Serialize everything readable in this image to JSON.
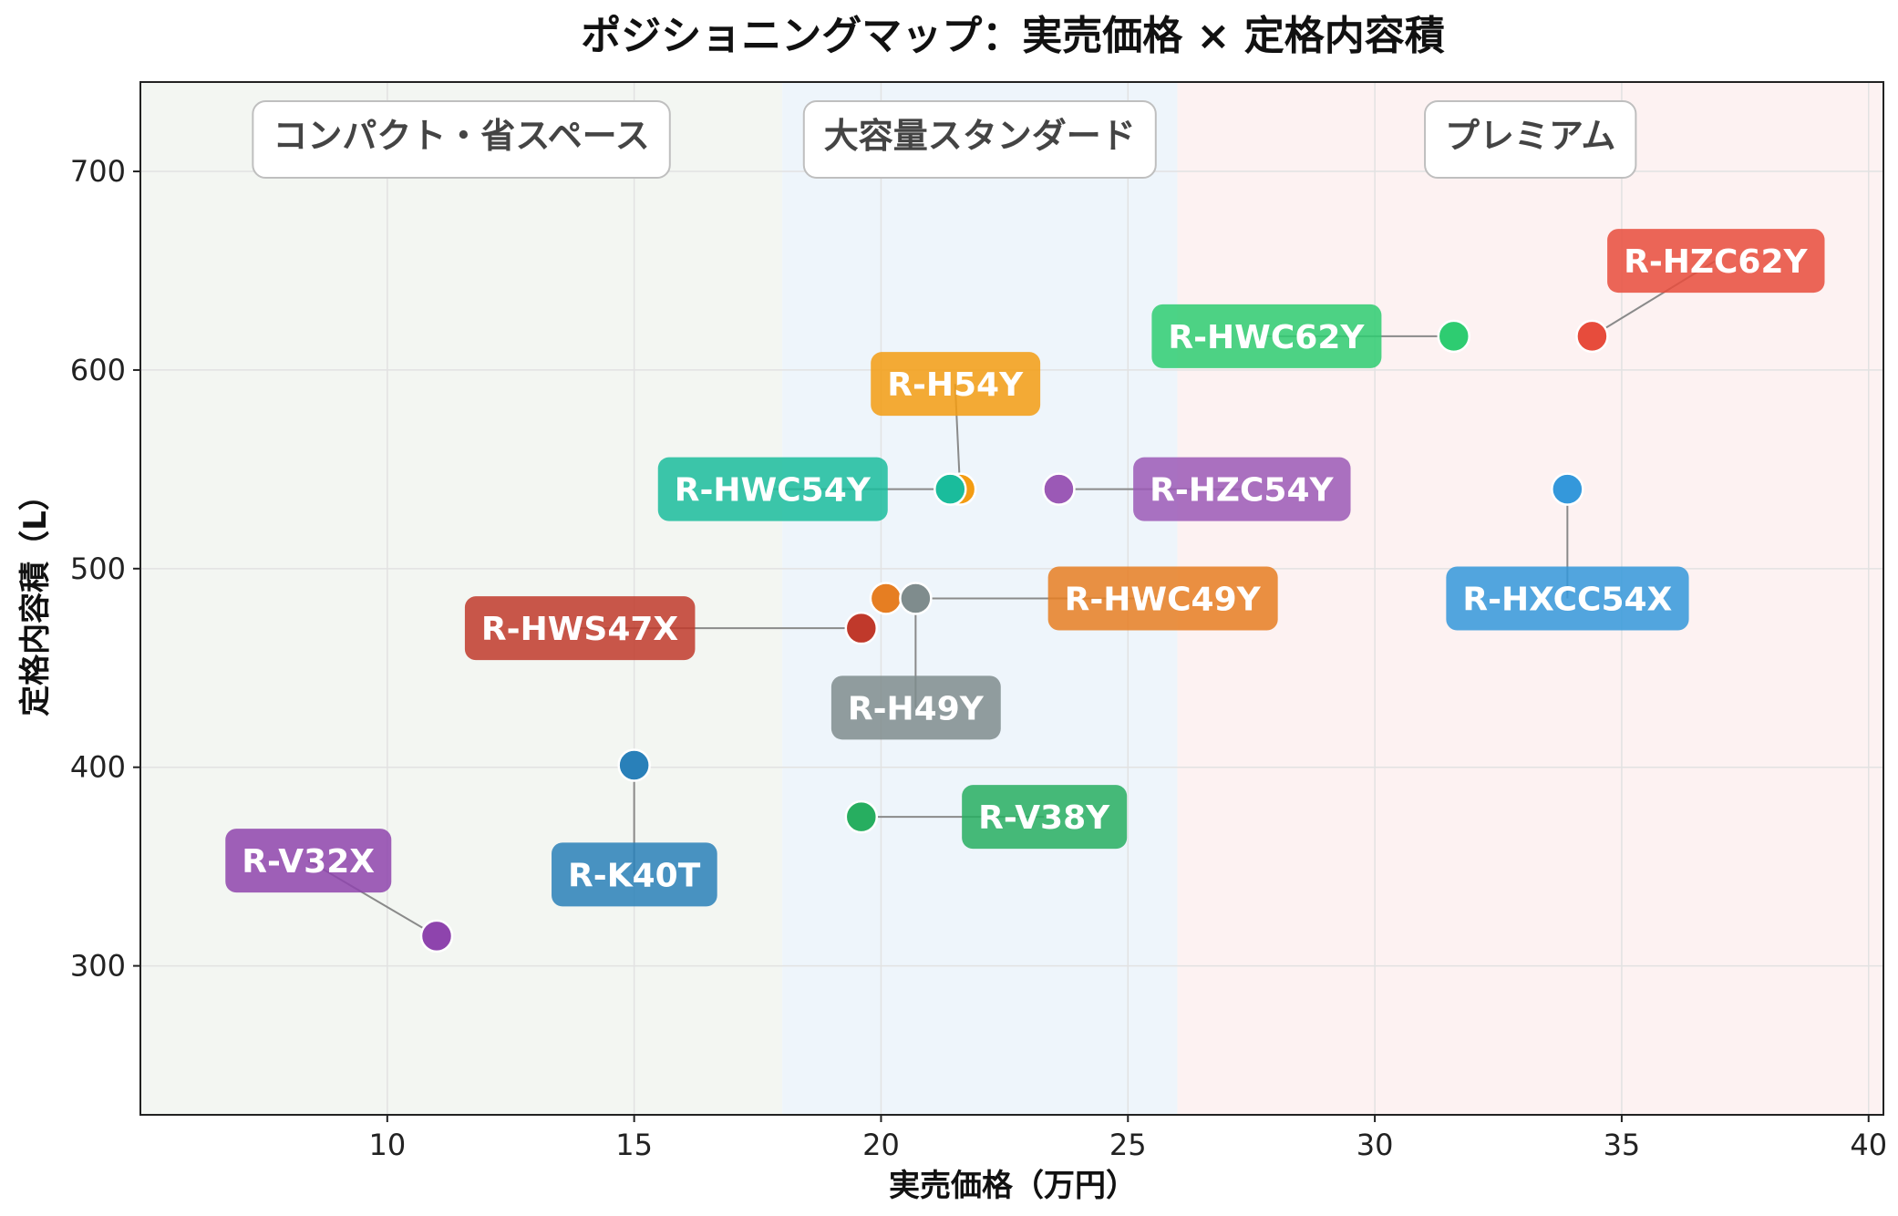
{
  "chart_data": {
    "type": "scatter",
    "title": "ポジショニングマップ：実売価格 × 定格内容積",
    "xlabel": "実売価格（万円）",
    "ylabel": "定格内容積（L）",
    "xlim": [
      5,
      40.3
    ],
    "ylim": [
      225,
      745
    ],
    "xticks": [
      10,
      15,
      20,
      25,
      30,
      35,
      40
    ],
    "yticks": [
      300,
      400,
      500,
      600,
      700
    ],
    "grid": true,
    "zones": [
      {
        "label": "コンパクト・省スペース",
        "x_range": [
          5,
          18
        ],
        "color": "#f3f6f2"
      },
      {
        "label": "大容量スタンダード",
        "x_range": [
          18,
          26
        ],
        "color": "#eef5fb"
      },
      {
        "label": "プレミアム",
        "x_range": [
          26,
          40.3
        ],
        "color": "#fdf2f2"
      }
    ],
    "points": [
      {
        "model": "R-HZC62Y",
        "x": 34.4,
        "y": 617,
        "color": "#e74c3c",
        "label_x": 36.9,
        "label_y": 655
      },
      {
        "model": "R-HWC62Y",
        "x": 31.6,
        "y": 617,
        "color": "#2ecc71",
        "label_x": 27.8,
        "label_y": 617
      },
      {
        "model": "R-H54Y",
        "x": 21.6,
        "y": 540,
        "color": "#f39c12",
        "label_x": 21.5,
        "label_y": 593
      },
      {
        "model": "R-HWC54Y",
        "x": 21.4,
        "y": 540,
        "color": "#1abc9c",
        "label_x": 17.8,
        "label_y": 540
      },
      {
        "model": "R-HZC54Y",
        "x": 23.6,
        "y": 540,
        "color": "#9b59b6",
        "label_x": 27.3,
        "label_y": 540
      },
      {
        "model": "R-HXCC54X",
        "x": 33.9,
        "y": 540,
        "color": "#3498db",
        "label_x": 33.9,
        "label_y": 485
      },
      {
        "model": "R-HWC49Y",
        "x": 20.1,
        "y": 485,
        "color": "#e67e22",
        "label_x": 25.7,
        "label_y": 485
      },
      {
        "model": "R-H49Y",
        "x": 20.7,
        "y": 485,
        "color": "#7f8c8d",
        "label_x": 20.7,
        "label_y": 430
      },
      {
        "model": "R-HWS47X",
        "x": 19.6,
        "y": 470,
        "color": "#c0392b",
        "label_x": 13.9,
        "label_y": 470
      },
      {
        "model": "R-K40T",
        "x": 15.0,
        "y": 401,
        "color": "#2980b9",
        "label_x": 15.0,
        "label_y": 346
      },
      {
        "model": "R-V38Y",
        "x": 19.6,
        "y": 375,
        "color": "#27ae60",
        "label_x": 23.3,
        "label_y": 375
      },
      {
        "model": "R-V32X",
        "x": 11.0,
        "y": 315,
        "color": "#8e44ad",
        "label_x": 8.4,
        "label_y": 353
      }
    ]
  }
}
